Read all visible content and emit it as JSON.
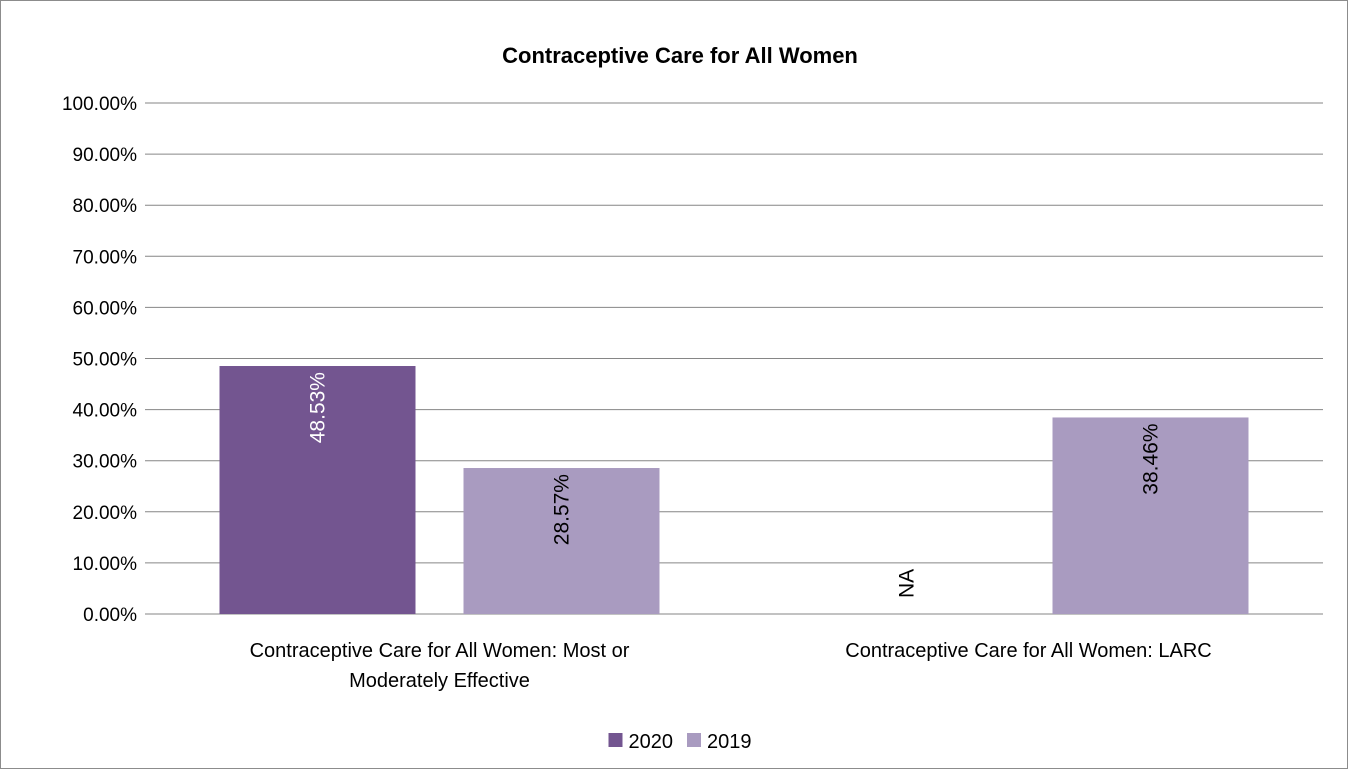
{
  "chart_data": {
    "type": "bar",
    "title": "Contraceptive Care for All Women",
    "xlabel": "",
    "ylabel": "",
    "ylim": [
      0,
      1
    ],
    "y_ticks": [
      "0.00%",
      "10.00%",
      "20.00%",
      "30.00%",
      "40.00%",
      "50.00%",
      "60.00%",
      "70.00%",
      "80.00%",
      "90.00%",
      "100.00%"
    ],
    "grid": true,
    "legend_position": "bottom",
    "categories": [
      [
        "Contraceptive Care for All Women: Most or",
        "Moderately Effective"
      ],
      [
        "Contraceptive Care for All Women: LARC"
      ]
    ],
    "series": [
      {
        "name": "2020",
        "color": "#735590",
        "label_color": "#ffffff",
        "values": [
          0.4853,
          null
        ],
        "labels": [
          "48.53%",
          "NA"
        ]
      },
      {
        "name": "2019",
        "color": "#a99bc0",
        "label_color": "#000000",
        "values": [
          0.2857,
          0.3846
        ],
        "labels": [
          "28.57%",
          "38.46%"
        ]
      }
    ]
  }
}
